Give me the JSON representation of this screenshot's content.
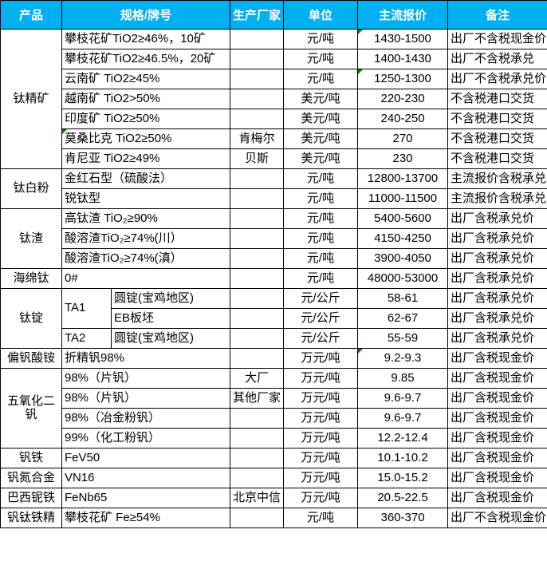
{
  "table": {
    "columns": [
      "产品",
      "规格/牌号",
      "生产厂家",
      "单位",
      "主流报价",
      "备注"
    ],
    "header_bg": "#00B0F0",
    "header_text_color": "#FFFFFF",
    "marker_color": "#008000",
    "rows": [
      {
        "cells": [
          {
            "name": "product-cell",
            "text": "钛精矿",
            "rowspan": 7
          },
          {
            "name": "spec-cell",
            "text": "攀枝花矿TiO2≥46%，10矿",
            "colspan": 2,
            "align": "left"
          },
          {
            "name": "manufacturer-cell",
            "text": ""
          },
          {
            "name": "unit-cell",
            "text": "元/吨"
          },
          {
            "name": "price-cell",
            "text": "1430-1500",
            "marker": true
          },
          {
            "name": "remark-cell",
            "text": "出厂不含税现金价",
            "align": "left"
          }
        ]
      },
      {
        "cells": [
          {
            "name": "spec-cell",
            "text": "攀枝花矿TiO2≥46.5%，20矿",
            "colspan": 2,
            "align": "left"
          },
          {
            "name": "manufacturer-cell",
            "text": ""
          },
          {
            "name": "unit-cell",
            "text": "元/吨"
          },
          {
            "name": "price-cell",
            "text": "1400-1430"
          },
          {
            "name": "remark-cell",
            "text": "出厂不含税承兑",
            "align": "left"
          }
        ]
      },
      {
        "cells": [
          {
            "name": "spec-cell",
            "text": "云南矿 TiO2≥45%",
            "colspan": 2,
            "align": "left"
          },
          {
            "name": "manufacturer-cell",
            "text": ""
          },
          {
            "name": "unit-cell",
            "text": "元/吨"
          },
          {
            "name": "price-cell",
            "text": "1250-1300",
            "marker": true
          },
          {
            "name": "remark-cell",
            "text": "出厂不含税承兑价",
            "align": "left"
          }
        ]
      },
      {
        "cells": [
          {
            "name": "spec-cell",
            "text": "越南矿 TiO2>50%",
            "colspan": 2,
            "align": "left"
          },
          {
            "name": "manufacturer-cell",
            "text": ""
          },
          {
            "name": "unit-cell",
            "text": "美元/吨"
          },
          {
            "name": "price-cell",
            "text": "220-230"
          },
          {
            "name": "remark-cell",
            "text": "不含税港口交货",
            "align": "left"
          }
        ]
      },
      {
        "cells": [
          {
            "name": "spec-cell",
            "text": "印度矿 TiO2≥50%",
            "colspan": 2,
            "align": "left"
          },
          {
            "name": "manufacturer-cell",
            "text": ""
          },
          {
            "name": "unit-cell",
            "text": "美元/吨"
          },
          {
            "name": "price-cell",
            "text": "240-250"
          },
          {
            "name": "remark-cell",
            "text": "不含税港口交货",
            "align": "left"
          }
        ]
      },
      {
        "cells": [
          {
            "name": "spec-cell",
            "text": "莫桑比克 TiO2≥50%",
            "colspan": 2,
            "align": "left",
            "marker": true
          },
          {
            "name": "manufacturer-cell",
            "text": "肯梅尔"
          },
          {
            "name": "unit-cell",
            "text": "美元/吨"
          },
          {
            "name": "price-cell",
            "text": "270"
          },
          {
            "name": "remark-cell",
            "text": "不含税港口交货",
            "align": "left"
          }
        ]
      },
      {
        "cells": [
          {
            "name": "spec-cell",
            "text": "肯尼亚 TiO2≥49%",
            "colspan": 2,
            "align": "left"
          },
          {
            "name": "manufacturer-cell",
            "text": "贝斯"
          },
          {
            "name": "unit-cell",
            "text": "美元/吨"
          },
          {
            "name": "price-cell",
            "text": "230"
          },
          {
            "name": "remark-cell",
            "text": "不含税港口交货",
            "align": "left"
          }
        ]
      },
      {
        "cells": [
          {
            "name": "product-cell",
            "text": "钛白粉",
            "rowspan": 2
          },
          {
            "name": "spec-cell",
            "text": "金红石型（硫酸法）",
            "colspan": 2,
            "align": "left"
          },
          {
            "name": "manufacturer-cell",
            "text": ""
          },
          {
            "name": "unit-cell",
            "text": "元/吨"
          },
          {
            "name": "price-cell",
            "text": "12800-13700"
          },
          {
            "name": "remark-cell",
            "text": "主流报价含税承兑",
            "align": "left"
          }
        ]
      },
      {
        "cells": [
          {
            "name": "spec-cell",
            "text": "锐钛型",
            "colspan": 2,
            "align": "left"
          },
          {
            "name": "manufacturer-cell",
            "text": ""
          },
          {
            "name": "unit-cell",
            "text": "元/吨"
          },
          {
            "name": "price-cell",
            "text": "11000-11500"
          },
          {
            "name": "remark-cell",
            "text": "主流报价含税承兑",
            "align": "left"
          }
        ]
      },
      {
        "cells": [
          {
            "name": "product-cell",
            "text": "钛渣",
            "rowspan": 3
          },
          {
            "name": "spec-cell",
            "text": "高钛渣 TiO₂≥90%",
            "colspan": 2,
            "align": "left"
          },
          {
            "name": "manufacturer-cell",
            "text": ""
          },
          {
            "name": "unit-cell",
            "text": "元/吨"
          },
          {
            "name": "price-cell",
            "text": "5400-5600"
          },
          {
            "name": "remark-cell",
            "text": "出厂含税承兑价",
            "align": "left"
          }
        ]
      },
      {
        "cells": [
          {
            "name": "spec-cell",
            "text": "酸溶渣TiO₂≥74%(川）",
            "colspan": 2,
            "align": "left"
          },
          {
            "name": "manufacturer-cell",
            "text": ""
          },
          {
            "name": "unit-cell",
            "text": "元/吨"
          },
          {
            "name": "price-cell",
            "text": "4150-4250"
          },
          {
            "name": "remark-cell",
            "text": "出厂含税承兑价",
            "align": "left"
          }
        ]
      },
      {
        "cells": [
          {
            "name": "spec-cell",
            "text": "酸溶渣TiO₂≥74%(滇）",
            "colspan": 2,
            "align": "left"
          },
          {
            "name": "manufacturer-cell",
            "text": ""
          },
          {
            "name": "unit-cell",
            "text": "元/吨"
          },
          {
            "name": "price-cell",
            "text": "3900-4050"
          },
          {
            "name": "remark-cell",
            "text": "出厂含税承兑价",
            "align": "left"
          }
        ]
      },
      {
        "cells": [
          {
            "name": "product-cell",
            "text": "海绵钛"
          },
          {
            "name": "spec-cell",
            "text": "0#",
            "colspan": 2,
            "align": "left"
          },
          {
            "name": "manufacturer-cell",
            "text": ""
          },
          {
            "name": "unit-cell",
            "text": "元/吨"
          },
          {
            "name": "price-cell",
            "text": "48000-53000"
          },
          {
            "name": "remark-cell",
            "text": "出厂含税承兑价",
            "align": "left"
          }
        ]
      },
      {
        "cells": [
          {
            "name": "product-cell",
            "text": "钛锭",
            "rowspan": 3
          },
          {
            "name": "grade-cell",
            "text": "TA1",
            "rowspan": 2,
            "align": "left"
          },
          {
            "name": "subspec-cell",
            "text": "圆锭(宝鸡地区)",
            "align": "left"
          },
          {
            "name": "manufacturer-cell",
            "text": ""
          },
          {
            "name": "unit-cell",
            "text": "元/公斤"
          },
          {
            "name": "price-cell",
            "text": "58-61"
          },
          {
            "name": "remark-cell",
            "text": "出厂含税承兑价",
            "align": "left"
          }
        ]
      },
      {
        "cells": [
          {
            "name": "subspec-cell",
            "text": "EB板坯",
            "align": "left"
          },
          {
            "name": "manufacturer-cell",
            "text": ""
          },
          {
            "name": "unit-cell",
            "text": "元/公斤"
          },
          {
            "name": "price-cell",
            "text": "62-67"
          },
          {
            "name": "remark-cell",
            "text": "出厂含税承兑价",
            "align": "left"
          }
        ]
      },
      {
        "cells": [
          {
            "name": "grade-cell",
            "text": "TA2",
            "align": "left"
          },
          {
            "name": "subspec-cell",
            "text": "圆锭(宝鸡地区)",
            "align": "left"
          },
          {
            "name": "manufacturer-cell",
            "text": ""
          },
          {
            "name": "unit-cell",
            "text": "元/公斤"
          },
          {
            "name": "price-cell",
            "text": "55-59"
          },
          {
            "name": "remark-cell",
            "text": "出厂含税承兑价",
            "align": "left"
          }
        ]
      },
      {
        "cells": [
          {
            "name": "product-cell",
            "text": "偏钒酸铵"
          },
          {
            "name": "spec-cell",
            "text": "折精钒98%",
            "colspan": 2,
            "align": "left"
          },
          {
            "name": "manufacturer-cell",
            "text": ""
          },
          {
            "name": "unit-cell",
            "text": "万元/吨"
          },
          {
            "name": "price-cell",
            "text": "9.2-9.3",
            "marker": true
          },
          {
            "name": "remark-cell",
            "text": "出厂含税现金价",
            "align": "left"
          }
        ]
      },
      {
        "cells": [
          {
            "name": "product-cell",
            "text": "五氧化二钒",
            "rowspan": 4
          },
          {
            "name": "spec-cell",
            "text": "98%（片钒）",
            "colspan": 2,
            "align": "left"
          },
          {
            "name": "manufacturer-cell",
            "text": "大厂"
          },
          {
            "name": "unit-cell",
            "text": "万元/吨"
          },
          {
            "name": "price-cell",
            "text": "9.85"
          },
          {
            "name": "remark-cell",
            "text": "出厂含税现金价",
            "align": "left"
          }
        ]
      },
      {
        "cells": [
          {
            "name": "spec-cell",
            "text": "98%（片钒）",
            "colspan": 2,
            "align": "left"
          },
          {
            "name": "manufacturer-cell",
            "text": "其他厂家"
          },
          {
            "name": "unit-cell",
            "text": "万元/吨"
          },
          {
            "name": "price-cell",
            "text": "9.6-9.7"
          },
          {
            "name": "remark-cell",
            "text": "出厂含税现金价",
            "align": "left"
          }
        ]
      },
      {
        "cells": [
          {
            "name": "spec-cell",
            "text": "98%（冶金粉钒）",
            "colspan": 2,
            "align": "left"
          },
          {
            "name": "manufacturer-cell",
            "text": ""
          },
          {
            "name": "unit-cell",
            "text": "万元/吨"
          },
          {
            "name": "price-cell",
            "text": "9.6-9.7"
          },
          {
            "name": "remark-cell",
            "text": "出厂含税现金价",
            "align": "left"
          }
        ]
      },
      {
        "cells": [
          {
            "name": "spec-cell",
            "text": "99%（化工粉钒）",
            "colspan": 2,
            "align": "left"
          },
          {
            "name": "manufacturer-cell",
            "text": ""
          },
          {
            "name": "unit-cell",
            "text": "万元/吨"
          },
          {
            "name": "price-cell",
            "text": "12.2-12.4"
          },
          {
            "name": "remark-cell",
            "text": "出厂含税现金价",
            "align": "left"
          }
        ]
      },
      {
        "cells": [
          {
            "name": "product-cell",
            "text": "钒铁"
          },
          {
            "name": "spec-cell",
            "text": "FeV50",
            "colspan": 2,
            "align": "left"
          },
          {
            "name": "manufacturer-cell",
            "text": ""
          },
          {
            "name": "unit-cell",
            "text": "万元/吨"
          },
          {
            "name": "price-cell",
            "text": "10.1-10.2"
          },
          {
            "name": "remark-cell",
            "text": "出厂含税现金价",
            "align": "left"
          }
        ]
      },
      {
        "cells": [
          {
            "name": "product-cell",
            "text": "钒氮合金"
          },
          {
            "name": "spec-cell",
            "text": "VN16",
            "colspan": 2,
            "align": "left"
          },
          {
            "name": "manufacturer-cell",
            "text": ""
          },
          {
            "name": "unit-cell",
            "text": "万元/吨"
          },
          {
            "name": "price-cell",
            "text": "15.0-15.2"
          },
          {
            "name": "remark-cell",
            "text": "出厂含税现金价",
            "align": "left"
          }
        ]
      },
      {
        "cells": [
          {
            "name": "product-cell",
            "text": "巴西铌铁"
          },
          {
            "name": "spec-cell",
            "text": "FeNb65",
            "colspan": 2,
            "align": "left"
          },
          {
            "name": "manufacturer-cell",
            "text": "北京中信"
          },
          {
            "name": "unit-cell",
            "text": "万元/吨"
          },
          {
            "name": "price-cell",
            "text": "20.5-22.5"
          },
          {
            "name": "remark-cell",
            "text": "出厂含税现金价",
            "align": "left"
          }
        ]
      },
      {
        "cells": [
          {
            "name": "product-cell",
            "text": "钒钛铁精"
          },
          {
            "name": "spec-cell",
            "text": "攀枝花矿 Fe≥54%",
            "colspan": 2,
            "align": "left"
          },
          {
            "name": "manufacturer-cell",
            "text": ""
          },
          {
            "name": "unit-cell",
            "text": "元/吨"
          },
          {
            "name": "price-cell",
            "text": "360-370"
          },
          {
            "name": "remark-cell",
            "text": "出厂不含税现金价",
            "align": "left"
          }
        ]
      }
    ]
  }
}
